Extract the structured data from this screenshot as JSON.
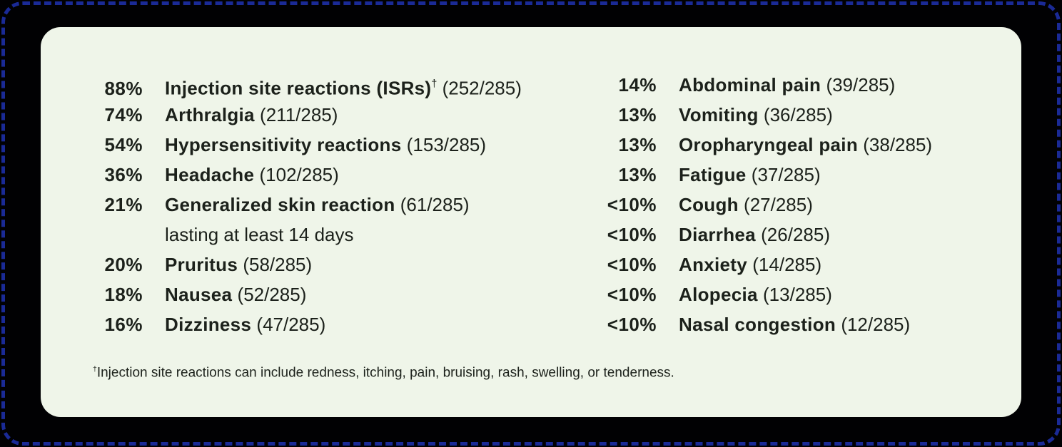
{
  "colors": {
    "background": "#010103",
    "border_dash": "#1a2a96",
    "card_background": "#eff5e9",
    "text": "#1c211b"
  },
  "card": {
    "columns": [
      {
        "items": [
          {
            "pct": "88%",
            "name": "Injection site reactions (ISRs)",
            "sup": "†",
            "count": "(252/285)"
          },
          {
            "pct": "74%",
            "name": "Arthralgia",
            "count": "(211/285)"
          },
          {
            "pct": "54%",
            "name": "Hypersensitivity reactions",
            "count": "(153/285)"
          },
          {
            "pct": "36%",
            "name": "Headache",
            "count": "(102/285)"
          },
          {
            "pct": "21%",
            "name": "Generalized skin reaction",
            "count": "(61/285)",
            "continuation": "lasting at least 14 days"
          },
          {
            "pct": "20%",
            "name": "Pruritus",
            "count": "(58/285)"
          },
          {
            "pct": "18%",
            "name": "Nausea",
            "count": "(52/285)"
          },
          {
            "pct": "16%",
            "name": "Dizziness",
            "count": "(47/285)"
          }
        ]
      },
      {
        "items": [
          {
            "pct": "14%",
            "name": "Abdominal pain",
            "count": "(39/285)"
          },
          {
            "pct": "13%",
            "name": "Vomiting",
            "count": "(36/285)"
          },
          {
            "pct": "13%",
            "name": "Oropharyngeal pain",
            "count": "(38/285)"
          },
          {
            "pct": "13%",
            "name": "Fatigue",
            "count": "(37/285)"
          },
          {
            "pct": "<10%",
            "name": "Cough",
            "count": "(27/285)"
          },
          {
            "pct": "<10%",
            "name": "Diarrhea",
            "count": "(26/285)"
          },
          {
            "pct": "<10%",
            "name": "Anxiety",
            "count": "(14/285)"
          },
          {
            "pct": "<10%",
            "name": "Alopecia",
            "count": "(13/285)"
          },
          {
            "pct": "<10%",
            "name": "Nasal congestion",
            "count": "(12/285)"
          }
        ]
      }
    ],
    "footnote": {
      "sup": "†",
      "text": "Injection site reactions can include redness, itching, pain, bruising, rash, swelling, or tenderness."
    }
  }
}
